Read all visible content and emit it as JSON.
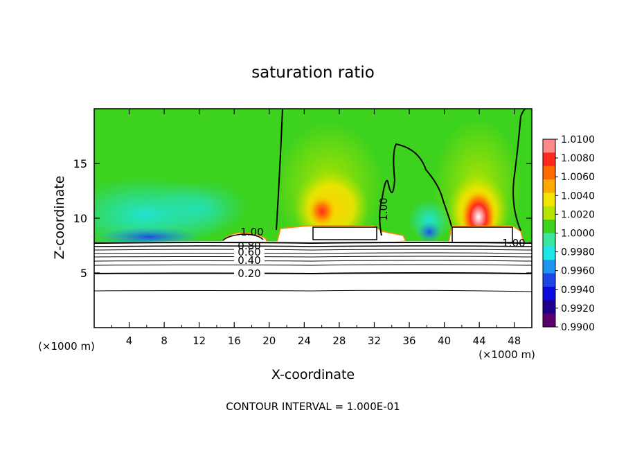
{
  "chart_data": {
    "type": "heatmap",
    "title": "saturation ratio",
    "xlabel": "X-coordinate",
    "ylabel": "Z-coordinate",
    "x_unit_left": "(×1000 m)",
    "x_unit_right": "(×1000 m)",
    "footer": "CONTOUR INTERVAL = 1.000E-01",
    "xlim": [
      0,
      50
    ],
    "ylim": [
      0,
      20
    ],
    "x_ticks": [
      4,
      8,
      12,
      16,
      20,
      24,
      28,
      32,
      36,
      40,
      44,
      48
    ],
    "y_ticks": [
      5,
      10,
      15
    ],
    "colorbar": {
      "min": 0.99,
      "max": 1.01,
      "labels": [
        "1.0100",
        "1.0080",
        "1.0060",
        "1.0040",
        "1.0020",
        "1.0000",
        "0.9980",
        "0.9960",
        "0.9940",
        "0.9920",
        "0.9900"
      ],
      "colors": [
        "#ff8a8a",
        "#ff2a1e",
        "#ff6a00",
        "#ffaa00",
        "#f4e400",
        "#b4e400",
        "#3cd21e",
        "#3ce6a0",
        "#1ee6e6",
        "#1e96f0",
        "#1e46e6",
        "#0a0adc",
        "#1e008c",
        "#5a006e"
      ]
    },
    "contour_labels": [
      "1.00",
      "1.00",
      "1.00",
      "0.80",
      "0.60",
      "0.40",
      "0.20"
    ],
    "grid": false
  }
}
